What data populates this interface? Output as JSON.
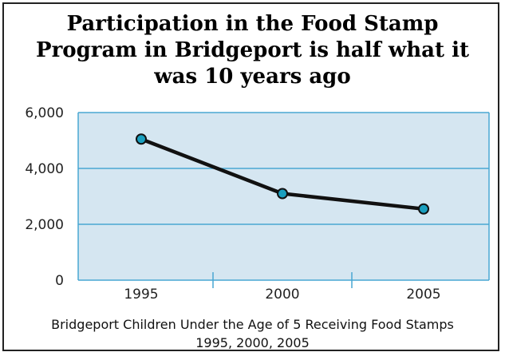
{
  "chart_data": {
    "type": "line",
    "title_lines": [
      "Participation in the Food Stamp",
      "Program in Bridgeport is half what it",
      "was 10 years ago"
    ],
    "categories": [
      "1995",
      "2000",
      "2005"
    ],
    "values": [
      5050,
      3100,
      2550
    ],
    "ylim": [
      0,
      6000
    ],
    "yticks": [
      {
        "value": 0,
        "label": "0"
      },
      {
        "value": 2000,
        "label": "2,000"
      },
      {
        "value": 4000,
        "label": "4,000"
      },
      {
        "value": 6000,
        "label": "6,000"
      }
    ],
    "grid": true,
    "caption_lines": [
      "Bridgeport Children Under the Age of 5 Receiving Food Stamps",
      "1995, 2000, 2005"
    ],
    "colors": {
      "plot_background": "#d5e6f1",
      "plot_border": "#49a7d3",
      "line": "#111111",
      "marker": "#1a9fbf"
    }
  }
}
